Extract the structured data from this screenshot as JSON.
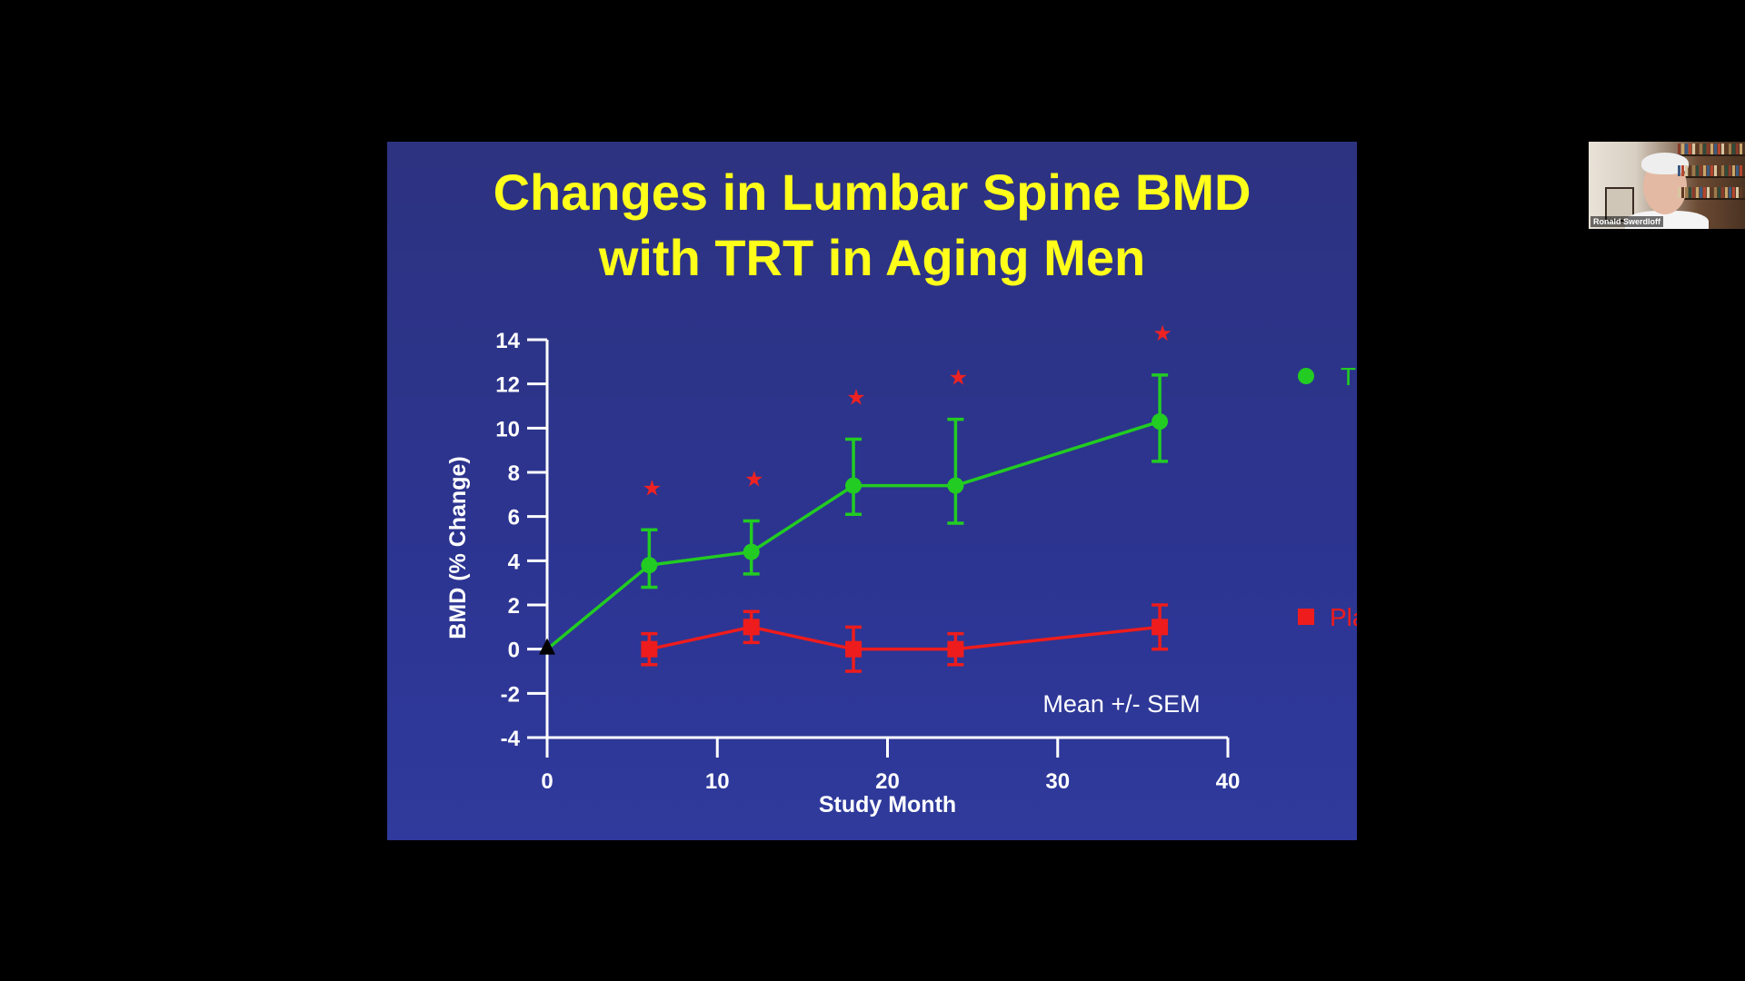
{
  "slide": {
    "title_line1": "Changes in Lumbar Spine BMD",
    "title_line2": "with TRT in Aging Men",
    "note": "Mean +/- SEM"
  },
  "chart_data": {
    "type": "line",
    "xlabel": "Study Month",
    "ylabel": "BMD (% Change)",
    "xlim": [
      0,
      40
    ],
    "ylim": [
      -4,
      14
    ],
    "x_ticks": [
      0,
      10,
      20,
      30,
      40
    ],
    "y_ticks": [
      -4,
      -2,
      0,
      2,
      4,
      6,
      8,
      10,
      12,
      14
    ],
    "baseline_marker": {
      "x": 0,
      "y": 0
    },
    "legend_position": "right",
    "series": [
      {
        "name": "T only",
        "color": "#22cc22",
        "marker": "circle",
        "x": [
          0,
          6,
          12,
          18,
          24,
          36
        ],
        "y": [
          0,
          3.8,
          4.4,
          7.4,
          7.4,
          10.3
        ],
        "err_low": [
          0,
          1.0,
          1.0,
          1.3,
          1.7,
          1.8
        ],
        "err_high": [
          0,
          1.6,
          1.4,
          2.1,
          3.0,
          2.1
        ],
        "significant": [
          false,
          true,
          true,
          true,
          true,
          true
        ]
      },
      {
        "name": "Placebo",
        "color": "#ee1c1c",
        "marker": "square",
        "x": [
          6,
          12,
          18,
          24,
          36
        ],
        "y": [
          0,
          1.0,
          0,
          0,
          1.0
        ],
        "err_low": [
          0.7,
          0.7,
          1.0,
          0.7,
          1.0
        ],
        "err_high": [
          0.7,
          0.7,
          1.0,
          0.7,
          1.0
        ]
      }
    ],
    "significance_marker": "★",
    "significance_color": "#ee2222"
  },
  "webcam": {
    "participant_name": "Ronald Swerdloff"
  }
}
